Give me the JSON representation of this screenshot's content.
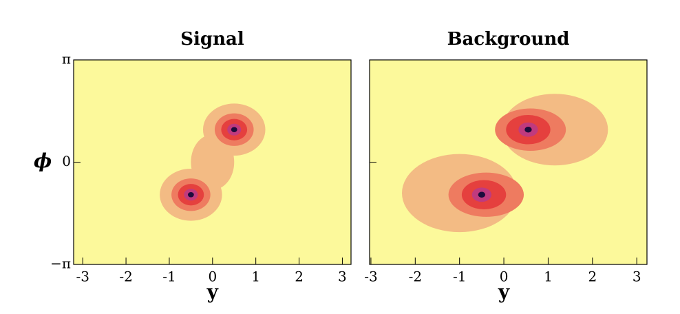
{
  "chart_data": [
    {
      "type": "heatmap",
      "title": "Signal",
      "xlabel": "y",
      "ylabel": "ϕ",
      "xlim": [
        -3.21,
        3.2
      ],
      "ylim": [
        -3.1416,
        3.1416
      ],
      "xticks": [
        -3,
        -2,
        -1,
        0,
        1,
        2,
        3
      ],
      "yticks": [
        {
          "value": -3.1416,
          "label": "−π"
        },
        0,
        {
          "value": 3.1416,
          "label": "π"
        }
      ],
      "show_ytick_labels": true,
      "background": "#fcf99b",
      "regions": [
        {
          "x": 0.5,
          "y": 1.0,
          "rx": 0.72,
          "ry": 0.8,
          "color": "#f3bb84"
        },
        {
          "x": -0.5,
          "y": -1.0,
          "rx": 0.72,
          "ry": 0.8,
          "color": "#f3bb84"
        },
        {
          "x": 0.0,
          "y": 0.0,
          "rx": 0.5,
          "ry": 0.85,
          "color": "#f3bb84"
        },
        {
          "x": 0.5,
          "y": 1.0,
          "rx": 0.45,
          "ry": 0.5,
          "color": "#ee7b60"
        },
        {
          "x": -0.5,
          "y": -1.0,
          "rx": 0.45,
          "ry": 0.5,
          "color": "#ee7b60"
        },
        {
          "x": 0.5,
          "y": 1.0,
          "rx": 0.3,
          "ry": 0.33,
          "color": "#e5403e"
        },
        {
          "x": -0.5,
          "y": -1.0,
          "rx": 0.3,
          "ry": 0.33,
          "color": "#e5403e"
        },
        {
          "x": 0.5,
          "y": 1.0,
          "rx": 0.16,
          "ry": 0.18,
          "color": "#c03a7e"
        },
        {
          "x": -0.5,
          "y": -1.0,
          "rx": 0.16,
          "ry": 0.18,
          "color": "#c03a7e"
        },
        {
          "x": 0.5,
          "y": 1.0,
          "rx": 0.07,
          "ry": 0.08,
          "color": "#1c0c3c"
        },
        {
          "x": -0.5,
          "y": -1.0,
          "rx": 0.07,
          "ry": 0.08,
          "color": "#1c0c3c"
        }
      ]
    },
    {
      "type": "heatmap",
      "title": "Background",
      "xlabel": "y",
      "xlim": [
        -3.03,
        3.23
      ],
      "ylim": [
        -3.1416,
        3.1416
      ],
      "xticks": [
        -3,
        -2,
        -1,
        0,
        1,
        2,
        3
      ],
      "yticks": [
        -3.1416,
        0,
        3.1416
      ],
      "show_ytick_labels": false,
      "background": "#fcf99b",
      "regions": [
        {
          "x": 1.15,
          "y": 1.0,
          "rx": 1.2,
          "ry": 1.1,
          "color": "#f3bb84"
        },
        {
          "x": -1.0,
          "y": -0.95,
          "rx": 1.3,
          "ry": 1.2,
          "color": "#f3bb84"
        },
        {
          "x": 0.6,
          "y": 1.0,
          "rx": 0.8,
          "ry": 0.65,
          "color": "#ee7b60"
        },
        {
          "x": -0.4,
          "y": -1.0,
          "rx": 0.85,
          "ry": 0.68,
          "color": "#ee7b60"
        },
        {
          "x": 0.55,
          "y": 1.0,
          "rx": 0.5,
          "ry": 0.45,
          "color": "#e5403e"
        },
        {
          "x": -0.45,
          "y": -1.0,
          "rx": 0.5,
          "ry": 0.45,
          "color": "#e5403e"
        },
        {
          "x": 0.55,
          "y": 1.0,
          "rx": 0.22,
          "ry": 0.22,
          "color": "#c03a7e"
        },
        {
          "x": -0.5,
          "y": -1.0,
          "rx": 0.22,
          "ry": 0.22,
          "color": "#c03a7e"
        },
        {
          "x": 0.55,
          "y": 1.0,
          "rx": 0.08,
          "ry": 0.09,
          "color": "#1c0c3c"
        },
        {
          "x": -0.5,
          "y": -1.0,
          "rx": 0.08,
          "ry": 0.09,
          "color": "#1c0c3c"
        }
      ]
    }
  ]
}
